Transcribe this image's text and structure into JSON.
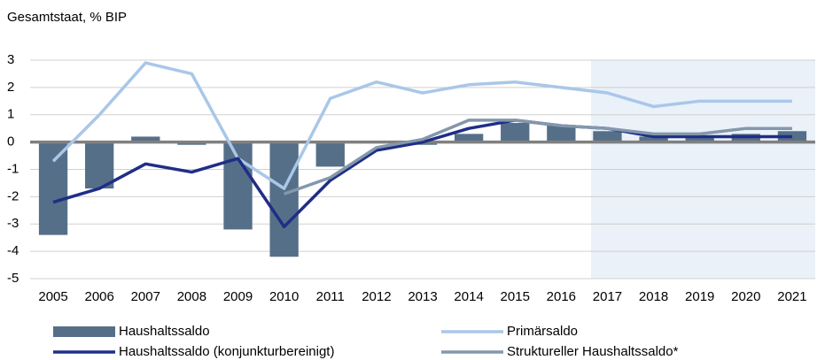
{
  "chart_data": {
    "type": "bar",
    "title": "Gesamtstaat, % BIP",
    "categories": [
      "2005",
      "2006",
      "2007",
      "2008",
      "2009",
      "2010",
      "2011",
      "2012",
      "2013",
      "2014",
      "2015",
      "2016",
      "2017",
      "2018",
      "2019",
      "2020",
      "2021"
    ],
    "ylim": [
      -5,
      3
    ],
    "yticks": [
      3,
      2,
      1,
      0,
      -1,
      -2,
      -3,
      -4,
      -5
    ],
    "grid": true,
    "series": [
      {
        "name": "Haushaltssaldo",
        "type": "bar",
        "color": "#566f88",
        "values": [
          -3.4,
          -1.7,
          0.2,
          -0.1,
          -3.2,
          -4.2,
          -0.9,
          0.0,
          -0.1,
          0.3,
          0.7,
          0.6,
          0.4,
          0.2,
          0.2,
          0.3,
          0.4
        ]
      },
      {
        "name": "Primärsaldo",
        "type": "line",
        "color": "#a9c7e8",
        "values": [
          -0.7,
          1.0,
          2.9,
          2.5,
          -0.6,
          -1.7,
          1.6,
          2.2,
          1.8,
          2.1,
          2.2,
          2.0,
          1.8,
          1.3,
          1.5,
          1.5,
          1.5
        ]
      },
      {
        "name": "Haushaltssaldo (konjunkturbereinigt)",
        "type": "line",
        "color": "#1f2e86",
        "values": [
          -2.2,
          -1.7,
          -0.8,
          -1.1,
          -0.6,
          -3.1,
          -1.4,
          -0.3,
          0.0,
          0.5,
          0.8,
          0.6,
          0.5,
          0.2,
          0.2,
          0.2,
          0.2
        ]
      },
      {
        "name": "Struktureller Haushaltssaldo*",
        "type": "line",
        "color": "#8497ab",
        "values": [
          null,
          null,
          null,
          null,
          null,
          -1.9,
          -1.3,
          -0.2,
          0.1,
          0.8,
          0.8,
          0.6,
          0.5,
          0.3,
          0.3,
          0.5,
          0.5
        ]
      }
    ]
  }
}
